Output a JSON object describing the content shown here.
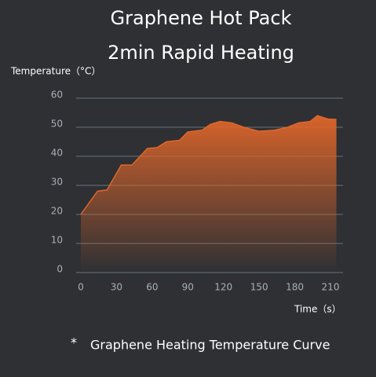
{
  "chart_data": {
    "type": "area-line",
    "title": "Graphene Hot Pack",
    "subtitle": "2min Rapid Heating",
    "y_label": "Temperature（°C）",
    "x_label": "Time（s）",
    "caption_marker": "*",
    "caption": "Graphene Heating Temperature Curve",
    "x": [
      0,
      14,
      22,
      34,
      43,
      56,
      64,
      72,
      83,
      90,
      102,
      109,
      117,
      127,
      137,
      150,
      163,
      174,
      183,
      193,
      199,
      208,
      215
    ],
    "values": [
      20,
      28,
      28.4,
      37,
      37,
      42.7,
      43,
      45,
      45.5,
      48.4,
      49,
      51,
      52,
      51.5,
      50,
      48.6,
      49,
      50,
      51.5,
      52,
      54,
      52.8,
      52.7
    ],
    "color": "#e0662a",
    "xlim": [
      0,
      210
    ],
    "xticks": [
      0,
      30,
      60,
      90,
      120,
      150,
      180,
      210
    ],
    "ylim": [
      0,
      60
    ],
    "yticks": [
      0,
      10,
      20,
      30,
      40,
      50,
      60
    ],
    "grid": true
  }
}
